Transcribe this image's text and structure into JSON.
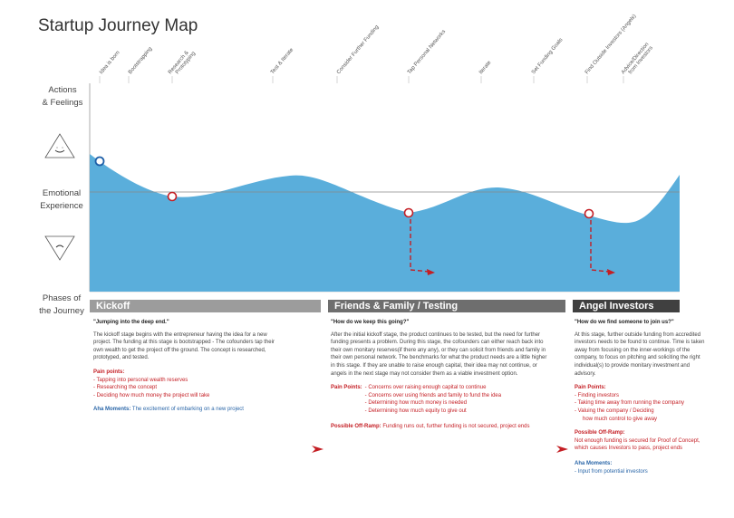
{
  "title": "Startup Journey Map",
  "side_labels": {
    "actions": [
      "Actions",
      "& Feelings"
    ],
    "emotional": [
      "Emotional",
      "Experience"
    ],
    "phases": [
      "Phases of",
      "the Journey"
    ]
  },
  "stages": [
    {
      "label": "Idea is born"
    },
    {
      "label": "Bootstrapping"
    },
    {
      "label": "Research &"
    },
    {
      "label": "Prototyping"
    },
    {
      "label": "Test & Iterate"
    },
    {
      "label": "Consider Further Funding"
    },
    {
      "label": "Tap Personal Networks"
    },
    {
      "label": "Iterate"
    },
    {
      "label": "Set Funding Goals"
    },
    {
      "label": "Find Outside Investors (Angels)"
    },
    {
      "label": "Advice/Direction"
    },
    {
      "label": "from Investors"
    }
  ],
  "colors": {
    "wave": "#5aaedb",
    "marker": "#c41e24",
    "start_marker": "#1e5fa8",
    "phase1": "#9c9c9c",
    "phase2": "#6e6e6e",
    "phase3": "#404040"
  },
  "phases": [
    {
      "name": "Kickoff",
      "quote": "\"Jumping into the deep end.\"",
      "description": "The kickoff stage begins with the entrepreneur having the idea for a new project. The funding at this stage is bootstrapped - The cofounders tap their own wealth to get the project off the ground. The concept is researched, prototyped, and tested.",
      "pain_title": "Pain points:",
      "pain_points": [
        "- Tapping into personal wealth reserves",
        "- Researching the concept",
        "- Deciding how much money the project will take"
      ],
      "aha_title": "Aha Moments:",
      "aha_text": "The excitement of embarking on a new project"
    },
    {
      "name": "Friends & Family / Testing",
      "quote": "\"How do we keep this going?\"",
      "description": "After the initial kickoff stage, the product continues to be tested, but the need for further funding presents a problem. During this stage, the cofounders can either reach back into their own monitary reserves(if there any any), or they can solicit from friends and family in their own personal network. The benchmarks for what the product needs are a little higher in this stage. If they are unable to raise enough capital, their idea may not continue, or angels in the next stage may not consider them as a viable investment option.",
      "pain_title": "Pain Points:",
      "pain_points": [
        "- Concerns over raising enough capital to continue",
        "- Concerns over using friends and family to fund the idea",
        "- Determining how much money is needed",
        "- Determining how much equity to give out"
      ],
      "offramp_title": "Possible Off-Ramp:",
      "offramp_text": "Funding runs out, further funding is not secured, project ends"
    },
    {
      "name": "Angel Investors",
      "quote": "\"How do we find someone to join us?\"",
      "description": "At this stage, further outside funding from accredited investors needs to be found to continue. Time is taken away from focusing on the inner-workings of the company, to focus on pitching and soliciting the right individual(s) to provide monitary investment and advisory.",
      "pain_title": "Pain Points:",
      "pain_points": [
        "- Finding investors",
        "- Taking time away from running the company",
        "- Valuing the company / Deciding",
        "   how much control to give away"
      ],
      "offramp_title": "Possible Off-Ramp:",
      "offramp_text": "Not enough funding is secured for Proof of Concept, which causes Investors to pass, project ends",
      "aha_title": "Aha Moments:",
      "aha_text": "- Input from potential investors"
    }
  ]
}
